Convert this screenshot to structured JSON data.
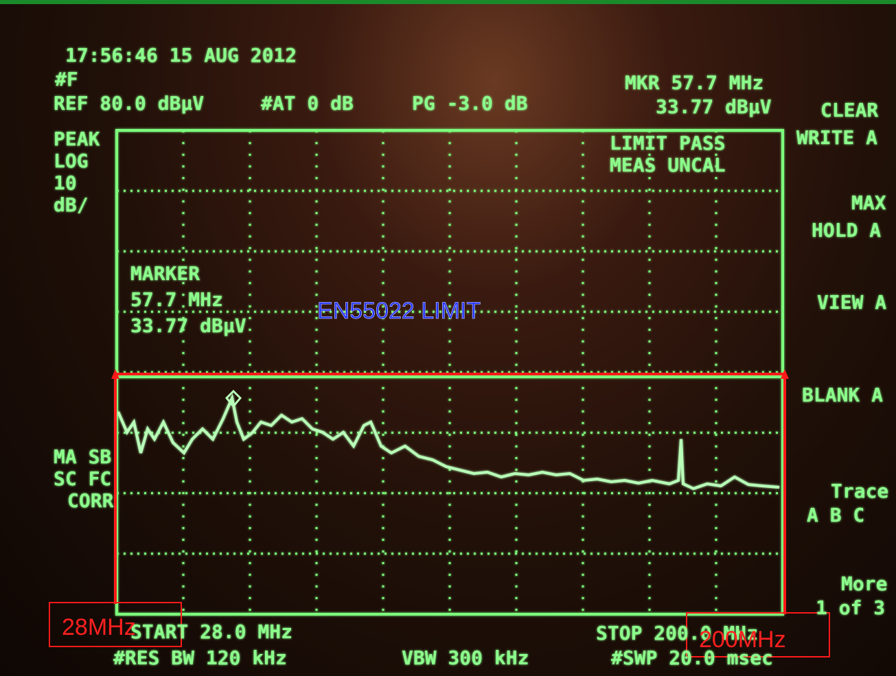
{
  "header": {
    "timestamp": "17:56:46  15 AUG 2012",
    "flag": "#F",
    "ref": "REF 80.0 dBµV",
    "atten": "#AT 0 dB",
    "pg": "PG -3.0 dB",
    "marker_freq": "MKR 57.7 MHz",
    "marker_level": "33.77 dBµV"
  },
  "left_panel": [
    "PEAK",
    "LOG",
    "10",
    "dB/"
  ],
  "left_lower": [
    "MA SB",
    "SC FC",
    "CORR"
  ],
  "status": [
    "LIMIT PASS",
    "MEAS UNCAL"
  ],
  "marker_box": [
    "MARKER",
    "57.7 MHz",
    "33.77 dBµV"
  ],
  "softkeys": [
    "CLEAR",
    "WRITE A",
    "MAX",
    "HOLD A",
    "VIEW A",
    "BLANK A",
    "Trace",
    "A  B  C",
    "More",
    "1 of 3"
  ],
  "footer": {
    "start": "START 28.0 MHz",
    "rbw": "#RES BW 120 kHz",
    "vbw": "VBW 300 kHz",
    "stop": "STOP 200.0 MHz",
    "sweep": "#SWP 20.0 msec"
  },
  "annotations": {
    "limit": "EN55022  LIMIT",
    "start": "28MHz",
    "stop": "200MHz"
  }
}
